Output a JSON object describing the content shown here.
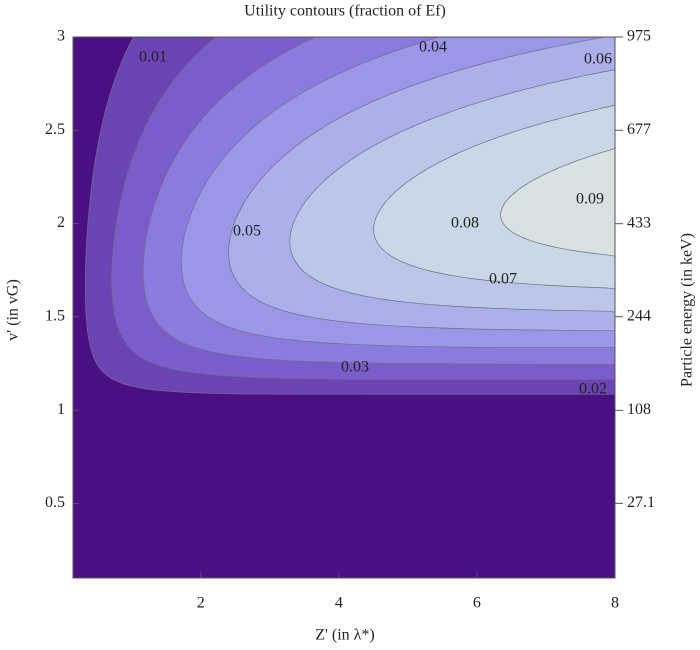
{
  "chart_data": {
    "type": "contour",
    "title": "Utility contours (fraction of Ef)",
    "x_label": "Z' (in λ*)",
    "y_label": "v' (in vG)",
    "y2_label": "Particle energy (in keV)",
    "levels": [
      0.01,
      0.02,
      0.03,
      0.04,
      0.05,
      0.06,
      0.07,
      0.08,
      0.09
    ],
    "colors": [
      "#4b0f84",
      "#6b44b4",
      "#7a5dcb",
      "#8a7cde",
      "#9b96e8",
      "#abb0ea",
      "#bac7e8",
      "#c9d8e6",
      "#d9e2e3",
      "#e9e6d6"
    ],
    "xlim": [
      0.15,
      8
    ],
    "xticks": [
      2,
      4,
      6,
      8
    ],
    "ylim": [
      0.1,
      3
    ],
    "yticks": [
      0.5,
      1,
      1.5,
      2,
      2.5,
      3
    ],
    "y2scale": "sqrt",
    "y2lim": [
      1.08,
      975
    ],
    "y2ticks": [
      27.1,
      108,
      244,
      433,
      677,
      975
    ]
  }
}
